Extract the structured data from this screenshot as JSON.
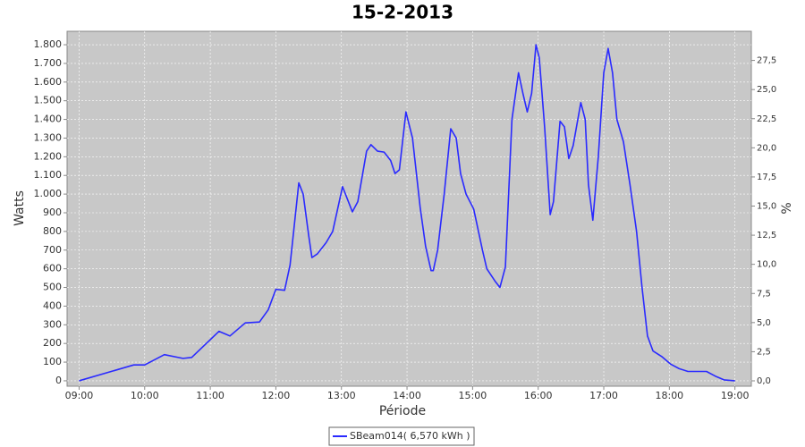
{
  "chart_data": {
    "type": "line",
    "title": "15-2-2013",
    "x_label": "Période",
    "y_label": "Watts",
    "y2_label": "%",
    "xlim": [
      "08:49",
      "19:15"
    ],
    "xticks": [
      "09:00",
      "10:00",
      "11:00",
      "12:00",
      "13:00",
      "14:00",
      "15:00",
      "16:00",
      "17:00",
      "18:00",
      "19:00"
    ],
    "ylim": [
      -29,
      1872
    ],
    "yticks": [
      0,
      100,
      200,
      300,
      400,
      500,
      600,
      700,
      800,
      900,
      {
        "value": 1000,
        "label": "1.000"
      },
      {
        "value": 1100,
        "label": "1.100"
      },
      {
        "value": 1200,
        "label": "1.200"
      },
      {
        "value": 1300,
        "label": "1.300"
      },
      {
        "value": 1400,
        "label": "1.400"
      },
      {
        "value": 1500,
        "label": "1.500"
      },
      {
        "value": 1600,
        "label": "1.600"
      },
      {
        "value": 1700,
        "label": "1.700"
      },
      {
        "value": 1800,
        "label": "1.800"
      }
    ],
    "y2lim": [
      -0.46,
      30
    ],
    "y2ticks": [
      {
        "value": 0,
        "label": "0,0"
      },
      {
        "value": 2.5,
        "label": "2,5"
      },
      {
        "value": 5,
        "label": "5,0"
      },
      {
        "value": 7.5,
        "label": "7,5"
      },
      {
        "value": 10,
        "label": "10,0"
      },
      {
        "value": 12.5,
        "label": "12,5"
      },
      {
        "value": 15,
        "label": "15,0"
      },
      {
        "value": 17.5,
        "label": "17,5"
      },
      {
        "value": 20,
        "label": "20,0"
      },
      {
        "value": 22.5,
        "label": "22,5"
      },
      {
        "value": 25,
        "label": "25,0"
      },
      {
        "value": 27.5,
        "label": "27,5"
      }
    ],
    "grid": true,
    "legend": "bottom",
    "x": [
      "09:00",
      "09:50",
      "10:00",
      "10:18",
      "10:35",
      "10:43",
      "11:08",
      "11:18",
      "11:32",
      "11:45",
      "11:53",
      "12:00",
      "12:08",
      "12:13",
      "12:21",
      "12:25",
      "12:30",
      "12:33",
      "12:38",
      "12:46",
      "12:52",
      "13:01",
      "13:10",
      "13:15",
      "13:23",
      "13:27",
      "13:33",
      "13:39",
      "13:45",
      "13:49",
      "13:53",
      "13:59",
      "14:05",
      "14:12",
      "14:17",
      "14:22",
      "14:24",
      "14:28",
      "14:34",
      "14:40",
      "14:45",
      "14:49",
      "14:54",
      "15:01",
      "15:09",
      "15:13",
      "15:21",
      "15:25",
      "15:30",
      "15:36",
      "15:42",
      "15:46",
      "15:50",
      "15:54",
      "15:58",
      "16:01",
      "16:06",
      "16:11",
      "16:14",
      "16:20",
      "16:24",
      "16:28",
      "16:32",
      "16:39",
      "16:43",
      "16:46",
      "16:50",
      "16:55",
      "17:00",
      "17:04",
      "17:08",
      "17:12",
      "17:18",
      "17:24",
      "17:30",
      "17:35",
      "17:40",
      "17:45",
      "17:53",
      "18:01",
      "18:09",
      "18:17",
      "18:34",
      "18:42",
      "18:50",
      "19:00"
    ],
    "series": [
      {
        "name": "SBeam014( 6,570 kWh )",
        "color": "#2a2aff",
        "values": [
          0,
          85,
          85,
          140,
          120,
          125,
          265,
          240,
          310,
          315,
          380,
          490,
          485,
          620,
          1060,
          1000,
          780,
          660,
          680,
          740,
          800,
          1040,
          905,
          960,
          1230,
          1265,
          1230,
          1225,
          1180,
          1110,
          1130,
          1440,
          1300,
          930,
          720,
          590,
          590,
          700,
          1000,
          1350,
          1300,
          1110,
          1000,
          920,
          700,
          600,
          530,
          500,
          610,
          1400,
          1650,
          1540,
          1440,
          1540,
          1800,
          1730,
          1350,
          890,
          960,
          1390,
          1360,
          1190,
          1260,
          1490,
          1400,
          1050,
          860,
          1200,
          1650,
          1780,
          1650,
          1400,
          1280,
          1050,
          800,
          500,
          240,
          160,
          130,
          90,
          65,
          50,
          50,
          25,
          5,
          0
        ]
      }
    ]
  }
}
